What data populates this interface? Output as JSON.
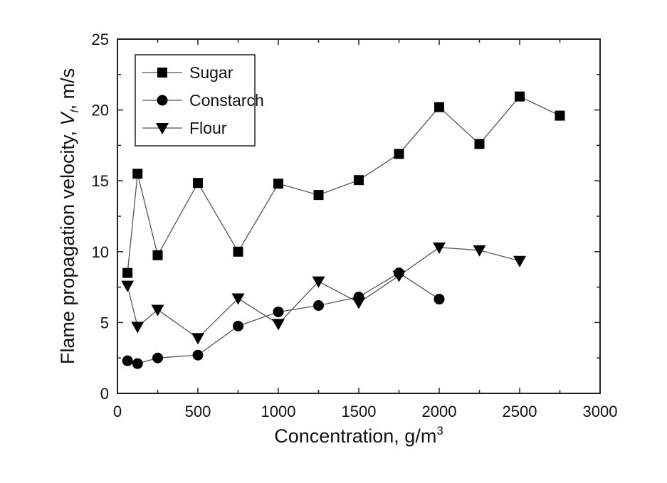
{
  "chart_data": {
    "type": "line",
    "title": "",
    "xlabel": "Concentration, g/m",
    "xlabel_sup": "3",
    "ylabel_prefix": "Flame propagation velocity, ",
    "ylabel_var": "V",
    "ylabel_sub": "f",
    "ylabel_suffix": ", m/s",
    "xlim": [
      0,
      3000
    ],
    "ylim": [
      0,
      25
    ],
    "xticks": [
      0,
      500,
      1000,
      1500,
      2000,
      2500,
      3000
    ],
    "yticks": [
      0,
      5,
      10,
      15,
      20,
      25
    ],
    "grid": false,
    "legend_position": "top-left",
    "series": [
      {
        "name": "Sugar",
        "marker": "square",
        "x": [
          62.5,
          125,
          250,
          500,
          750,
          1000,
          1250,
          1500,
          1750,
          2000,
          2250,
          2500,
          2750
        ],
        "y": [
          8.5,
          15.5,
          9.75,
          14.85,
          10.0,
          14.8,
          14.0,
          15.05,
          16.9,
          20.2,
          17.6,
          20.95,
          19.6
        ]
      },
      {
        "name": "Constarch",
        "marker": "circle",
        "x": [
          62.5,
          125,
          250,
          500,
          750,
          1000,
          1250,
          1500,
          1750,
          2000
        ],
        "y": [
          2.3,
          2.1,
          2.5,
          2.7,
          4.75,
          5.75,
          6.2,
          6.8,
          8.5,
          6.65
        ]
      },
      {
        "name": "Flour",
        "marker": "triangle-down",
        "x": [
          62.5,
          125,
          250,
          500,
          750,
          1000,
          1250,
          1500,
          1750,
          2000,
          2250,
          2500
        ],
        "y": [
          7.6,
          4.7,
          5.9,
          3.9,
          6.7,
          4.9,
          7.9,
          6.4,
          8.3,
          10.3,
          10.1,
          9.35
        ]
      }
    ]
  }
}
